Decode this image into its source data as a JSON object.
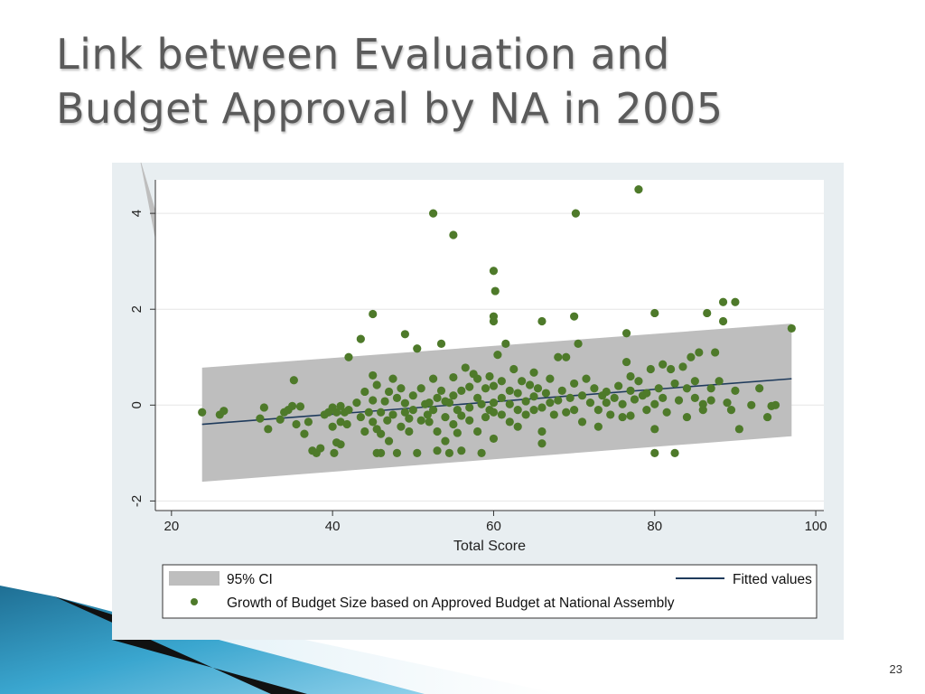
{
  "slide": {
    "title": "Link between Evaluation and\nBudget Approval by NA in 2005",
    "page_number": "23"
  },
  "colors": {
    "title": "#5a5a5a",
    "panel_background": "#e8eef1",
    "plot_background": "#ffffff",
    "ci_band": "#bebebe",
    "points": "#4e7a2a",
    "fitted_line": "#1f3b5c",
    "decor_blue": "#2b8fb8"
  },
  "chart_data": {
    "type": "scatter",
    "xlabel": "Total Score",
    "ylabel": "",
    "xlim": [
      18,
      101
    ],
    "ylim": [
      -2.2,
      4.7
    ],
    "x_ticks": [
      20,
      40,
      60,
      80,
      100
    ],
    "y_ticks": [
      -2,
      0,
      2,
      4
    ],
    "grid": "horizontal",
    "legend_placement": "bottom",
    "legend": {
      "ci_label": "95% CI",
      "fitted_label": "Fitted values",
      "points_label": "Growth of Budget Size based on Approved Budget at National Assembly"
    },
    "fitted_line": {
      "x": [
        23.8,
        97
      ],
      "y": [
        -0.4,
        0.55
      ]
    },
    "ci_band": {
      "x": [
        23.8,
        97
      ],
      "upper": [
        0.78,
        1.7
      ],
      "lower": [
        -1.6,
        -0.65
      ],
      "upper_left_excursion": {
        "x": 16,
        "y": 5.2
      }
    },
    "series": [
      {
        "name": "Growth of Budget Size based on Approved Budget at National Assembly",
        "points": [
          [
            23.8,
            -0.15
          ],
          [
            26,
            -0.2
          ],
          [
            26.5,
            -0.12
          ],
          [
            31,
            -0.28
          ],
          [
            31.5,
            -0.05
          ],
          [
            32,
            -0.5
          ],
          [
            33.5,
            -0.3
          ],
          [
            34,
            -0.15
          ],
          [
            34.5,
            -0.1
          ],
          [
            35,
            -0.02
          ],
          [
            35.2,
            0.52
          ],
          [
            35.5,
            -0.4
          ],
          [
            36,
            -0.03
          ],
          [
            36.5,
            -0.6
          ],
          [
            37,
            -0.35
          ],
          [
            37.5,
            -0.95
          ],
          [
            38,
            -1.0
          ],
          [
            38.5,
            -0.9
          ],
          [
            39,
            -0.2
          ],
          [
            39.5,
            -0.15
          ],
          [
            40,
            -0.05
          ],
          [
            40,
            -0.45
          ],
          [
            40.2,
            -1.0
          ],
          [
            40.5,
            -0.15
          ],
          [
            40.5,
            -0.78
          ],
          [
            41,
            -0.02
          ],
          [
            41,
            -0.35
          ],
          [
            41,
            -0.82
          ],
          [
            41.5,
            -0.15
          ],
          [
            41.8,
            -0.4
          ],
          [
            42,
            -0.1
          ],
          [
            42,
            1.0
          ],
          [
            43,
            0.05
          ],
          [
            43.5,
            -0.25
          ],
          [
            43.5,
            1.38
          ],
          [
            44,
            0.28
          ],
          [
            44,
            -0.55
          ],
          [
            44.5,
            -0.15
          ],
          [
            45,
            0.1
          ],
          [
            45,
            0.62
          ],
          [
            45,
            -0.35
          ],
          [
            45.5,
            -0.5
          ],
          [
            45.5,
            -1.0
          ],
          [
            45.5,
            0.42
          ],
          [
            46,
            -0.15
          ],
          [
            46,
            -0.6
          ],
          [
            46,
            -1.0
          ],
          [
            46.5,
            0.08
          ],
          [
            46.8,
            -0.32
          ],
          [
            47,
            -0.75
          ],
          [
            47,
            0.28
          ],
          [
            47.5,
            -0.2
          ],
          [
            47.5,
            0.55
          ],
          [
            48,
            -1.0
          ],
          [
            48,
            0.15
          ],
          [
            48.5,
            -0.45
          ],
          [
            48.5,
            0.35
          ],
          [
            49,
            0.04
          ],
          [
            49,
            -0.15
          ],
          [
            49,
            1.48
          ],
          [
            49.5,
            -0.55
          ],
          [
            49.5,
            -0.28
          ],
          [
            50,
            0.2
          ],
          [
            50,
            -0.1
          ],
          [
            50.5,
            -1.0
          ],
          [
            50.5,
            1.18
          ],
          [
            51,
            0.35
          ],
          [
            51,
            -0.32
          ],
          [
            51.5,
            0.02
          ],
          [
            51.8,
            -0.2
          ],
          [
            45,
            1.9
          ],
          [
            52.5,
            4.0
          ],
          [
            55,
            3.55
          ],
          [
            52,
            0.05
          ],
          [
            52,
            -0.35
          ],
          [
            52.5,
            0.55
          ],
          [
            52.5,
            -0.1
          ],
          [
            53,
            0.15
          ],
          [
            53,
            -0.55
          ],
          [
            53,
            -0.95
          ],
          [
            53.5,
            0.3
          ],
          [
            53.5,
            1.28
          ],
          [
            54,
            0.08
          ],
          [
            54,
            -0.25
          ],
          [
            54,
            -0.75
          ],
          [
            54.5,
            0.05
          ],
          [
            54.5,
            -1.0
          ],
          [
            55,
            0.2
          ],
          [
            55,
            -0.4
          ],
          [
            55,
            0.58
          ],
          [
            55.5,
            -0.1
          ],
          [
            55.5,
            -0.58
          ],
          [
            56,
            0.3
          ],
          [
            56,
            -0.22
          ],
          [
            56,
            -0.95
          ],
          [
            56.5,
            0.78
          ],
          [
            57,
            -0.05
          ],
          [
            57,
            0.38
          ],
          [
            57,
            -0.32
          ],
          [
            57.5,
            0.65
          ],
          [
            58,
            0.15
          ],
          [
            58,
            -0.55
          ],
          [
            58,
            0.55
          ],
          [
            58.5,
            -1.0
          ],
          [
            58.5,
            0.02
          ],
          [
            59,
            0.35
          ],
          [
            59,
            -0.25
          ],
          [
            59.5,
            0.6
          ],
          [
            59.5,
            -0.1
          ],
          [
            60,
            0.05
          ],
          [
            60,
            1.75
          ],
          [
            60,
            1.85
          ],
          [
            60,
            2.8
          ],
          [
            60,
            0.4
          ],
          [
            60,
            -0.15
          ],
          [
            60,
            -0.7
          ],
          [
            60.2,
            2.38
          ],
          [
            60.5,
            1.05
          ],
          [
            61,
            0.5
          ],
          [
            61,
            -0.2
          ],
          [
            61,
            0.15
          ],
          [
            61.5,
            1.28
          ],
          [
            62,
            0.3
          ],
          [
            62,
            0.02
          ],
          [
            62,
            -0.35
          ],
          [
            62.5,
            0.75
          ],
          [
            63,
            -0.1
          ],
          [
            63,
            0.25
          ],
          [
            63,
            -0.45
          ],
          [
            63.5,
            0.5
          ],
          [
            64,
            0.08
          ],
          [
            64,
            -0.2
          ],
          [
            64.5,
            0.42
          ],
          [
            65,
            0.18
          ],
          [
            65,
            -0.1
          ],
          [
            65,
            0.68
          ],
          [
            65.5,
            0.35
          ],
          [
            66,
            -0.05
          ],
          [
            66,
            -0.55
          ],
          [
            66,
            -0.8
          ],
          [
            66,
            1.75
          ],
          [
            66.5,
            0.25
          ],
          [
            67,
            0.05
          ],
          [
            67,
            0.55
          ],
          [
            67.5,
            -0.2
          ],
          [
            68,
            0.1
          ],
          [
            68,
            1.0
          ],
          [
            68.5,
            0.3
          ],
          [
            69,
            1.0
          ],
          [
            69,
            -0.15
          ],
          [
            69.5,
            0.15
          ],
          [
            70,
            1.85
          ],
          [
            70,
            -0.1
          ],
          [
            70,
            0.45
          ],
          [
            70.2,
            4.0
          ],
          [
            70.5,
            1.28
          ],
          [
            71,
            0.2
          ],
          [
            71,
            -0.35
          ],
          [
            71.5,
            0.55
          ],
          [
            72,
            0.05
          ],
          [
            72.5,
            0.35
          ],
          [
            73,
            -0.1
          ],
          [
            73,
            -0.45
          ],
          [
            73.5,
            0.2
          ],
          [
            74,
            0.05
          ],
          [
            74,
            0.28
          ],
          [
            74.5,
            -0.2
          ],
          [
            75,
            0.15
          ],
          [
            75.5,
            0.4
          ],
          [
            76,
            0.02
          ],
          [
            76,
            -0.25
          ],
          [
            76.5,
            0.9
          ],
          [
            76.5,
            1.5
          ],
          [
            77,
            0.3
          ],
          [
            77,
            0.6
          ],
          [
            77,
            -0.22
          ],
          [
            77.5,
            0.12
          ],
          [
            78,
            4.5
          ],
          [
            78,
            0.5
          ],
          [
            78.5,
            0.2
          ],
          [
            79,
            -0.1
          ],
          [
            79,
            0.25
          ],
          [
            79.5,
            0.75
          ],
          [
            80,
            1.92
          ],
          [
            80,
            -0.5
          ],
          [
            80,
            -1.0
          ],
          [
            80,
            0.02
          ],
          [
            80.5,
            0.35
          ],
          [
            81,
            0.85
          ],
          [
            81,
            0.15
          ],
          [
            81.5,
            -0.15
          ],
          [
            82,
            0.75
          ],
          [
            82.5,
            0.45
          ],
          [
            82.5,
            -1.0
          ],
          [
            83,
            0.1
          ],
          [
            83.5,
            0.8
          ],
          [
            84,
            -0.25
          ],
          [
            84,
            0.35
          ],
          [
            84.5,
            1.0
          ],
          [
            85,
            0.15
          ],
          [
            85,
            0.5
          ],
          [
            85.5,
            1.1
          ],
          [
            86,
            0.02
          ],
          [
            86,
            -0.1
          ],
          [
            86.5,
            1.92
          ],
          [
            87,
            0.35
          ],
          [
            87,
            0.1
          ],
          [
            87.5,
            1.1
          ],
          [
            88,
            0.5
          ],
          [
            88.5,
            1.75
          ],
          [
            88.5,
            2.15
          ],
          [
            89,
            0.05
          ],
          [
            89.5,
            -0.1
          ],
          [
            90,
            2.15
          ],
          [
            90,
            0.3
          ],
          [
            90.5,
            -0.5
          ],
          [
            92,
            0.0
          ],
          [
            93,
            0.35
          ],
          [
            94,
            -0.25
          ],
          [
            94.5,
            -0.02
          ],
          [
            95,
            0.0
          ],
          [
            97,
            1.6
          ]
        ]
      }
    ]
  }
}
